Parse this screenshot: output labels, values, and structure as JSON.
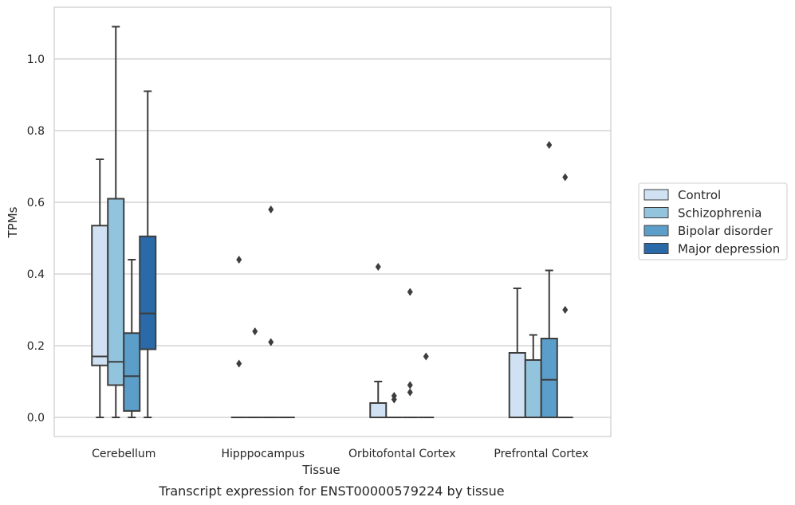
{
  "chart_data": {
    "type": "boxplot",
    "xlabel": "Tissue",
    "ylabel": "TPMs",
    "caption": "Transcript expression for ENST00000579224 by tissue",
    "ylim": [
      -0.05,
      1.15
    ],
    "yticks": [
      "0.0",
      "0.2",
      "0.4",
      "0.6",
      "0.8",
      "1.0"
    ],
    "grid": "horizontal",
    "legend_position": "right",
    "categories": [
      "Cerebellum",
      "Hipppocampus",
      "Orbitofontal Cortex",
      "Prefrontal Cortex"
    ],
    "series": [
      {
        "name": "Control",
        "color": "#cfe1f2",
        "boxes": [
          {
            "whislo": 0.0,
            "q1": 0.145,
            "med": 0.17,
            "q3": 0.535,
            "whishi": 0.72,
            "fliers": []
          },
          {
            "whislo": 0.0,
            "q1": 0.0,
            "med": 0.0,
            "q3": 0.0,
            "whishi": 0.0,
            "fliers": [
              0.44,
              0.15
            ]
          },
          {
            "whislo": 0.0,
            "q1": 0.0,
            "med": 0.0,
            "q3": 0.04,
            "whishi": 0.1,
            "fliers": [
              0.42
            ]
          },
          {
            "whislo": 0.0,
            "q1": 0.0,
            "med": 0.0,
            "q3": 0.18,
            "whishi": 0.36,
            "fliers": []
          }
        ]
      },
      {
        "name": "Schizophrenia",
        "color": "#93c4de",
        "boxes": [
          {
            "whislo": 0.0,
            "q1": 0.09,
            "med": 0.155,
            "q3": 0.61,
            "whishi": 1.09,
            "fliers": []
          },
          {
            "whislo": 0.0,
            "q1": 0.0,
            "med": 0.0,
            "q3": 0.0,
            "whishi": 0.0,
            "fliers": [
              0.24
            ]
          },
          {
            "whislo": 0.0,
            "q1": 0.0,
            "med": 0.0,
            "q3": 0.0,
            "whishi": 0.0,
            "fliers": [
              0.06,
              0.05
            ]
          },
          {
            "whislo": 0.0,
            "q1": 0.0,
            "med": 0.0,
            "q3": 0.16,
            "whishi": 0.23,
            "fliers": []
          }
        ]
      },
      {
        "name": "Bipolar disorder",
        "color": "#5b9ec9",
        "boxes": [
          {
            "whislo": 0.0,
            "q1": 0.018,
            "med": 0.115,
            "q3": 0.235,
            "whishi": 0.44,
            "fliers": []
          },
          {
            "whislo": 0.0,
            "q1": 0.0,
            "med": 0.0,
            "q3": 0.0,
            "whishi": 0.0,
            "fliers": [
              0.58,
              0.21
            ]
          },
          {
            "whislo": 0.0,
            "q1": 0.0,
            "med": 0.0,
            "q3": 0.0,
            "whishi": 0.0,
            "fliers": [
              0.35,
              0.09,
              0.07
            ]
          },
          {
            "whislo": 0.0,
            "q1": 0.0,
            "med": 0.105,
            "q3": 0.22,
            "whishi": 0.41,
            "fliers": [
              0.76
            ]
          }
        ]
      },
      {
        "name": "Major depression",
        "color": "#2b6aa9",
        "boxes": [
          {
            "whislo": 0.0,
            "q1": 0.19,
            "med": 0.29,
            "q3": 0.505,
            "whishi": 0.91,
            "fliers": []
          },
          {
            "whislo": 0.0,
            "q1": 0.0,
            "med": 0.0,
            "q3": 0.0,
            "whishi": 0.0,
            "fliers": []
          },
          {
            "whislo": 0.0,
            "q1": 0.0,
            "med": 0.0,
            "q3": 0.0,
            "whishi": 0.0,
            "fliers": [
              0.17
            ]
          },
          {
            "whislo": 0.0,
            "q1": 0.0,
            "med": 0.0,
            "q3": 0.0,
            "whishi": 0.0,
            "fliers": [
              0.67,
              0.3
            ]
          }
        ]
      }
    ]
  }
}
